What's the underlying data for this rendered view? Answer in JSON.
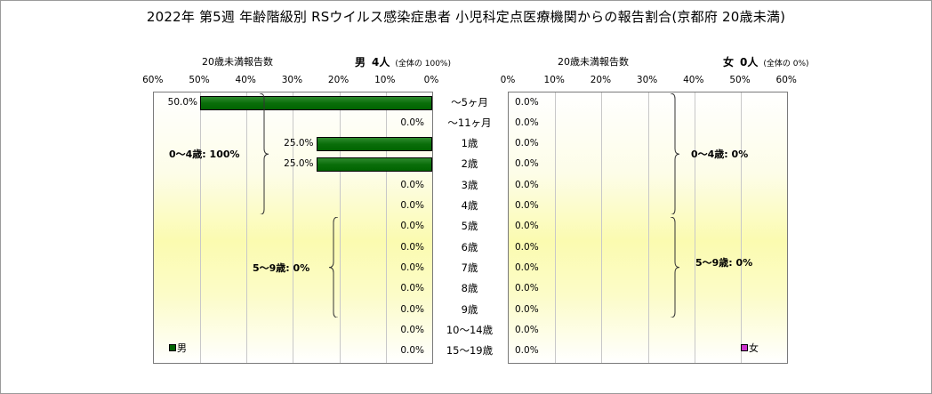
{
  "title": "2022年 第5週 年齢階級別 RSウイルス感染症患者 小児科定点医療機関からの報告割合(京都府 20歳未満)",
  "chart_data": {
    "type": "bar",
    "categories": [
      "～5ヶ月",
      "～11ヶ月",
      "1歳",
      "2歳",
      "3歳",
      "4歳",
      "5歳",
      "6歳",
      "7歳",
      "8歳",
      "9歳",
      "10～14歳",
      "15～19歳"
    ],
    "ticks": [
      "60%",
      "50%",
      "40%",
      "30%",
      "20%",
      "10%",
      "0%"
    ],
    "ticks_right": [
      "0%",
      "10%",
      "20%",
      "30%",
      "40%",
      "50%",
      "60%"
    ],
    "xlim": [
      0,
      60
    ],
    "colors": {
      "male": "#006400",
      "female": "#cc33cc"
    },
    "series": [
      {
        "name": "男",
        "values": [
          50.0,
          0.0,
          25.0,
          25.0,
          0.0,
          0.0,
          0.0,
          0.0,
          0.0,
          0.0,
          0.0,
          0.0,
          0.0
        ],
        "labels": [
          "50.0%",
          "0.0%",
          "25.0%",
          "25.0%",
          "0.0%",
          "0.0%",
          "0.0%",
          "0.0%",
          "0.0%",
          "0.0%",
          "0.0%",
          "0.0%",
          "0.0%"
        ]
      },
      {
        "name": "女",
        "values": [
          0.0,
          0.0,
          0.0,
          0.0,
          0.0,
          0.0,
          0.0,
          0.0,
          0.0,
          0.0,
          0.0,
          0.0,
          0.0
        ],
        "labels": [
          "0.0%",
          "0.0%",
          "0.0%",
          "0.0%",
          "0.0%",
          "0.0%",
          "0.0%",
          "0.0%",
          "0.0%",
          "0.0%",
          "0.0%",
          "0.0%",
          "0.0%"
        ]
      }
    ],
    "left_header": {
      "label": "20歳未満報告数",
      "sex": "男",
      "count": "4人",
      "share": "(全体の 100%)"
    },
    "right_header": {
      "label": "20歳未満報告数",
      "sex": "女",
      "count": "0人",
      "share": "(全体の 0%)"
    },
    "groups": {
      "male": [
        "0～4歳: 100%",
        "5～9歳: 0%"
      ],
      "female": [
        "0～4歳: 0%",
        "5～9歳: 0%"
      ]
    },
    "legend": [
      "男",
      "女"
    ]
  }
}
